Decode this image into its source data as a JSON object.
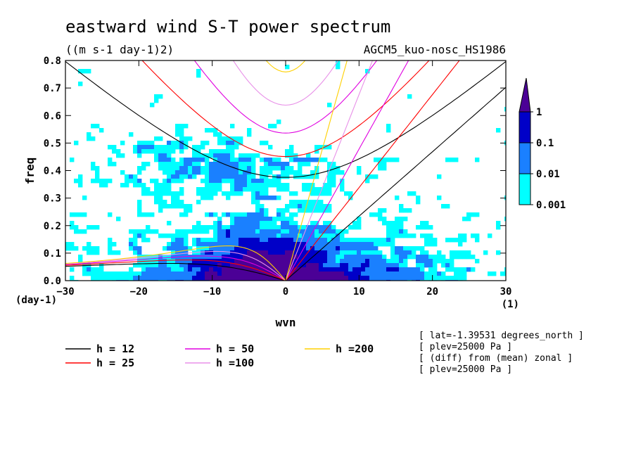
{
  "chart_data": {
    "type": "heatmap",
    "title": "eastward wind S-T power spectrum",
    "units": "((m s-1 day-1)2)",
    "model": "AGCM5_kuo-nosc_HS1986",
    "xlabel": "wvn",
    "ylabel": "freq",
    "x_unit": "(1)",
    "y_unit": "(day-1)",
    "xlim": [
      -30,
      30
    ],
    "ylim": [
      0,
      0.8
    ],
    "x_ticks": [
      "-30",
      "-20",
      "-10",
      "0",
      "10",
      "20",
      "30"
    ],
    "y_ticks": [
      "0.0",
      "0.1",
      "0.2",
      "0.3",
      "0.4",
      "0.5",
      "0.6",
      "0.7",
      "0.8"
    ],
    "colorbar": {
      "levels": [
        "0.001",
        "0.01",
        "0.1",
        "1"
      ],
      "colors": [
        "#00ffff",
        "#1a80ff",
        "#0000c8",
        "#4b0096"
      ]
    },
    "dispersion_curves": [
      {
        "label": "h = 12",
        "h": 12,
        "color": "#000000"
      },
      {
        "label": "h = 25",
        "h": 25,
        "color": "#ff0000"
      },
      {
        "label": "h = 50",
        "h": 50,
        "color": "#e000e0"
      },
      {
        "label": "h =100",
        "h": 100,
        "color": "#e890e8"
      },
      {
        "label": "h =200",
        "h": 200,
        "color": "#ffd000"
      }
    ],
    "annotations": [
      "[ lat=-1.39531 degrees_north ]",
      "[ plev=25000 Pa ]",
      "[ (diff) from (mean) zonal ]",
      "[ plev=25000 Pa ]"
    ]
  }
}
